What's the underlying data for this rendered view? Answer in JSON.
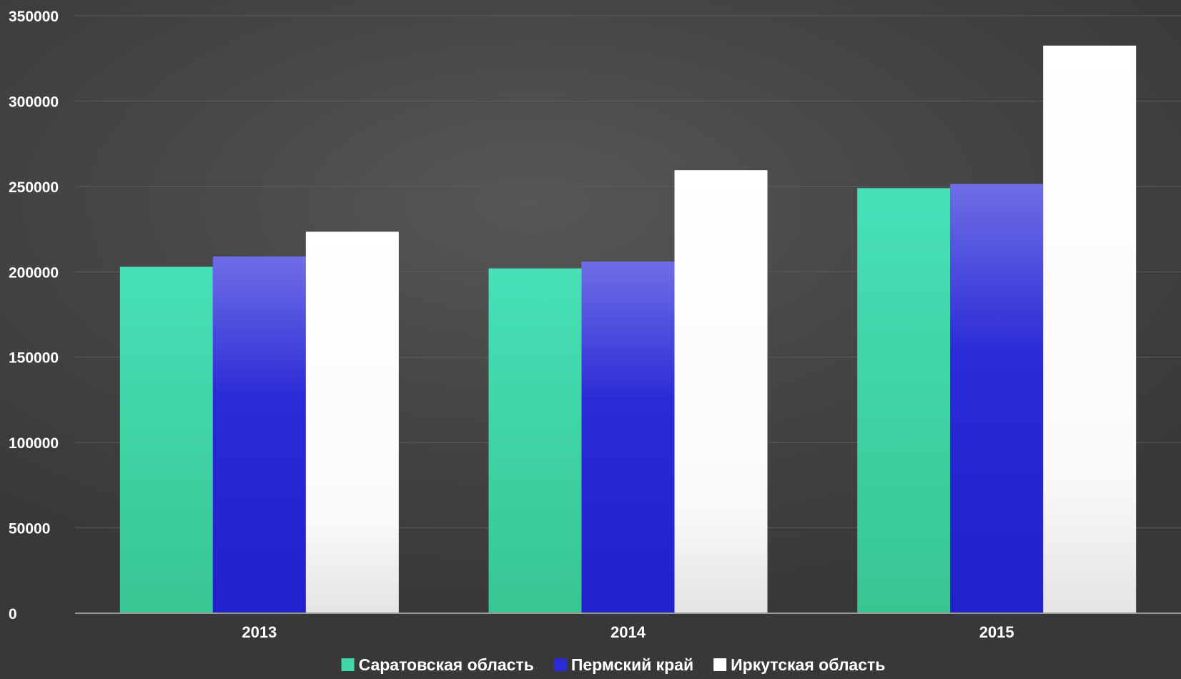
{
  "chart_data": {
    "type": "bar",
    "categories": [
      "2013",
      "2014",
      "2015"
    ],
    "series": [
      {
        "name": "Саратовская область",
        "values": [
          203000,
          202000,
          249000
        ],
        "color": "#43d6aa"
      },
      {
        "name": "Пермский край",
        "values": [
          209000,
          206000,
          251500
        ],
        "color": "#2a2ad6"
      },
      {
        "name": "Иркутская область",
        "values": [
          223500,
          259500,
          332500
        ],
        "color": "#ffffff"
      }
    ],
    "ylim": [
      0,
      350000
    ],
    "yticks": [
      "0",
      "50000",
      "100000",
      "150000",
      "200000",
      "250000",
      "300000",
      "350000"
    ],
    "grid": true,
    "legend_position": "bottom-center",
    "title": "",
    "xlabel": "",
    "ylabel": ""
  }
}
